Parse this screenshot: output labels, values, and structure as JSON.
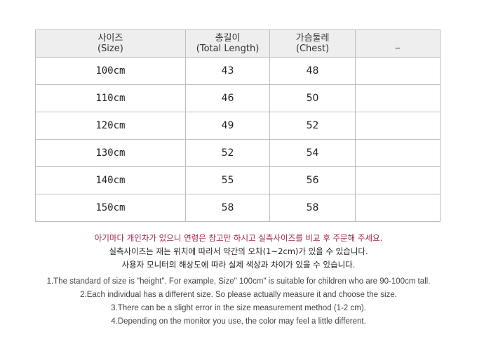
{
  "table": {
    "headers": [
      {
        "ko": "사이즈",
        "en": "(Size)"
      },
      {
        "ko": "총길이",
        "en": "(Total Length)"
      },
      {
        "ko": "가슴둘레",
        "en": "(Chest)"
      },
      {
        "ko": "_",
        "en": ""
      }
    ],
    "rows": [
      [
        "100cm",
        "43",
        "48",
        ""
      ],
      [
        "110cm",
        "46",
        "50",
        ""
      ],
      [
        "120cm",
        "49",
        "52",
        ""
      ],
      [
        "130cm",
        "52",
        "54",
        ""
      ],
      [
        "140cm",
        "55",
        "56",
        ""
      ],
      [
        "150cm",
        "58",
        "58",
        ""
      ]
    ]
  },
  "notes_ko": [
    "아기마다 개인차가 있으니 연령은 참고만 하시고 실측사이즈를 비교 후 주문해 주세요.",
    "실측사이즈는 재는 위치에 따라서 약간의  오차(1~2cm)가 있을 수 있습니다.",
    "사용자 모니터의 해상도에 따라 실제 색상과 차이가 있을 수 있습니다."
  ],
  "notes_en": [
    "1.The standard of size is \"height\". For example,  Size\" 100cm\" is suitable for children who are 90-100cm tall.",
    "2.Each individual has a different size. So please actually measure it and choose the size.",
    "3.There can be a slight error in the size measurement method (1-2 cm).",
    "4.Depending on the monitor you use, the color may feel a little different."
  ],
  "colors": {
    "header_bg": "#eeeeee",
    "highlight_text": "#a0224a",
    "border": "#bdbdbd"
  }
}
